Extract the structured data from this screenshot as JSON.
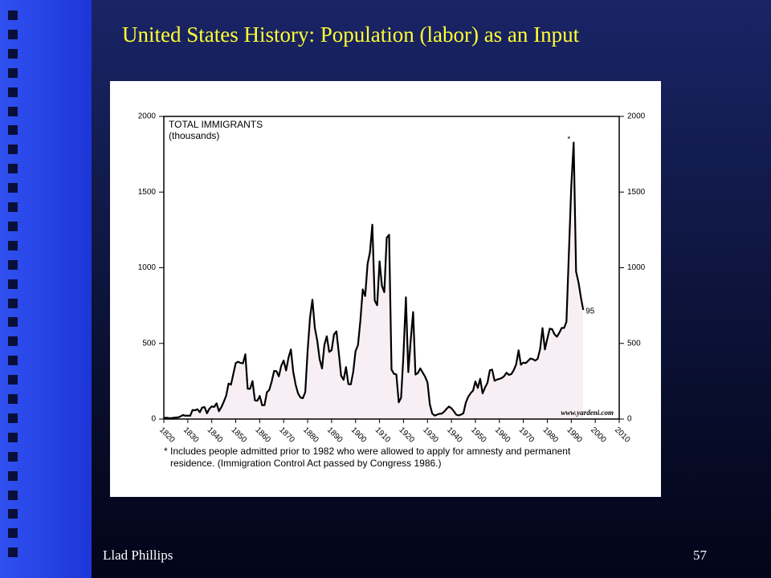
{
  "slide": {
    "title": "United States History: Population (labor) as an Input",
    "author": "Llad Phillips",
    "page": "57"
  },
  "chart_data": {
    "type": "line",
    "title": "TOTAL IMMIGRANTS",
    "subtitle": "(thousands)",
    "x": [
      1820,
      1821,
      1822,
      1823,
      1824,
      1825,
      1826,
      1827,
      1828,
      1829,
      1830,
      1831,
      1832,
      1833,
      1834,
      1835,
      1836,
      1837,
      1838,
      1839,
      1840,
      1841,
      1842,
      1843,
      1844,
      1845,
      1846,
      1847,
      1848,
      1849,
      1850,
      1851,
      1852,
      1853,
      1854,
      1855,
      1856,
      1857,
      1858,
      1859,
      1860,
      1861,
      1862,
      1863,
      1864,
      1865,
      1866,
      1867,
      1868,
      1869,
      1870,
      1871,
      1872,
      1873,
      1874,
      1875,
      1876,
      1877,
      1878,
      1879,
      1880,
      1881,
      1882,
      1883,
      1884,
      1885,
      1886,
      1887,
      1888,
      1889,
      1890,
      1891,
      1892,
      1893,
      1894,
      1895,
      1896,
      1897,
      1898,
      1899,
      1900,
      1901,
      1902,
      1903,
      1904,
      1905,
      1906,
      1907,
      1908,
      1909,
      1910,
      1911,
      1912,
      1913,
      1914,
      1915,
      1916,
      1917,
      1918,
      1919,
      1920,
      1921,
      1922,
      1923,
      1924,
      1925,
      1926,
      1927,
      1928,
      1929,
      1930,
      1931,
      1932,
      1933,
      1934,
      1935,
      1936,
      1937,
      1938,
      1939,
      1940,
      1941,
      1942,
      1943,
      1944,
      1945,
      1946,
      1947,
      1948,
      1949,
      1950,
      1951,
      1952,
      1953,
      1954,
      1955,
      1956,
      1957,
      1958,
      1959,
      1960,
      1961,
      1962,
      1963,
      1964,
      1965,
      1966,
      1967,
      1968,
      1969,
      1970,
      1971,
      1972,
      1973,
      1974,
      1975,
      1976,
      1977,
      1978,
      1979,
      1980,
      1981,
      1982,
      1983,
      1984,
      1985,
      1986,
      1987,
      1988,
      1989,
      1990,
      1991,
      1992,
      1993,
      1994,
      1995
    ],
    "values": [
      8,
      9,
      7,
      6,
      8,
      10,
      11,
      18,
      27,
      22,
      23,
      22,
      60,
      58,
      65,
      45,
      76,
      79,
      38,
      68,
      84,
      80,
      104,
      52,
      78,
      114,
      154,
      235,
      227,
      297,
      370,
      379,
      371,
      368,
      428,
      200,
      200,
      251,
      123,
      121,
      153,
      91,
      91,
      176,
      193,
      248,
      318,
      316,
      282,
      352,
      387,
      321,
      405,
      460,
      313,
      227,
      170,
      142,
      138,
      178,
      457,
      669,
      789,
      603,
      519,
      395,
      334,
      490,
      547,
      444,
      455,
      560,
      580,
      440,
      286,
      259,
      343,
      231,
      229,
      312,
      449,
      488,
      649,
      857,
      813,
      1026,
      1101,
      1285,
      783,
      752,
      1042,
      879,
      838,
      1198,
      1218,
      327,
      299,
      295,
      111,
      141,
      430,
      805,
      310,
      523,
      707,
      294,
      304,
      335,
      307,
      280,
      242,
      97,
      36,
      23,
      29,
      35,
      36,
      50,
      68,
      83,
      71,
      52,
      29,
      24,
      29,
      38,
      109,
      147,
      171,
      188,
      249,
      206,
      266,
      170,
      208,
      238,
      322,
      327,
      253,
      261,
      265,
      271,
      284,
      306,
      292,
      297,
      323,
      362,
      454,
      359,
      373,
      370,
      385,
      400,
      395,
      386,
      399,
      462,
      601,
      460,
      531,
      597,
      594,
      560,
      544,
      570,
      602,
      602,
      643,
      1091,
      1536,
      1827,
      974,
      904,
      804,
      721
    ],
    "color": "#000000",
    "fill_color": "#f8eff4",
    "xlim": [
      1820,
      2010
    ],
    "xticks": [
      1820,
      1830,
      1840,
      1850,
      1860,
      1870,
      1880,
      1890,
      1900,
      1910,
      1920,
      1930,
      1940,
      1950,
      1960,
      1970,
      1980,
      1990,
      2000,
      2010
    ],
    "ylim": [
      0,
      2000
    ],
    "yticks": [
      0,
      500,
      1000,
      1500,
      2000
    ],
    "y2lim": [
      0,
      2000
    ],
    "y2ticks": [
      0,
      500,
      1000,
      1500,
      2000
    ],
    "peak_note": "*",
    "end_label": "95",
    "source": "www.yardeni.com",
    "footnote": [
      "* Includes people admitted prior to 1982 who were allowed to apply for amnesty and permanent",
      "residence. (Immigration Control Act passed by Congress 1986.)"
    ]
  }
}
